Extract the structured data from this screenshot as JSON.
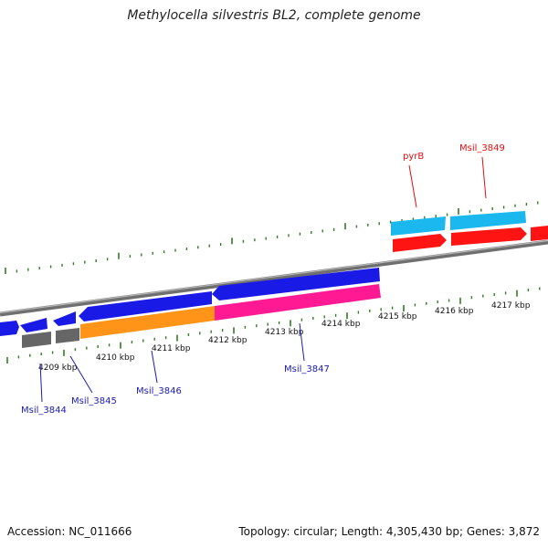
{
  "title": "Methylocella silvestris BL2, complete genome",
  "footer": {
    "accession": "Accession: NC_011666",
    "summary": "Topology: circular; Length: 4,305,430 bp; Genes: 3,872"
  },
  "colors": {
    "background": "#ffffff",
    "backbone": "#8c8c8c",
    "tick": "#2e7d1f",
    "reverse_cds": "#1a1ae6",
    "forward_cds": "#ff1414",
    "cyan_cds": "#1ab8ee",
    "pink_cds": "#ff1a93",
    "orange_cds": "#ff9419",
    "gray_cds": "#666666",
    "label_blue": "#1a1ab4",
    "label_red": "#e01010"
  },
  "kbp_labels": [
    "4209 kbp",
    "4210 kbp",
    "4211 kbp",
    "4212 kbp",
    "4213 kbp",
    "4214 kbp",
    "4215 kbp",
    "4216 kbp",
    "4217 kbp"
  ],
  "genes": [
    {
      "name": "pyrB",
      "color": "red"
    },
    {
      "name": "Msil_3849",
      "color": "red"
    },
    {
      "name": "Msil_3847",
      "color": "blue"
    },
    {
      "name": "Msil_3846",
      "color": "blue"
    },
    {
      "name": "Msil_3845",
      "color": "blue"
    },
    {
      "name": "Msil_3844",
      "color": "blue"
    }
  ]
}
